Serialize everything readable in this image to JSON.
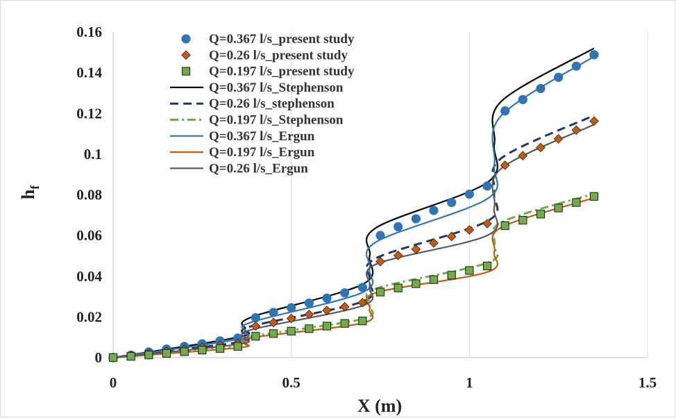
{
  "chart_data": {
    "type": "line",
    "title": "",
    "xlabel": "X (m)",
    "ylabel": "h",
    "ylabel_subscript": "f",
    "xlim": [
      0,
      1.5
    ],
    "ylim": [
      0,
      0.16
    ],
    "x_ticks": [
      "0",
      "0.5",
      "1",
      "1.5"
    ],
    "x_tick_values": [
      0,
      0.5,
      1,
      1.5
    ],
    "y_ticks": [
      "0",
      "0.02",
      "0.04",
      "0.06",
      "0.08",
      "0.1",
      "0.12",
      "0.14",
      "0.16"
    ],
    "y_tick_values": [
      0,
      0.02,
      0.04,
      0.06,
      0.08,
      0.1,
      0.12,
      0.14,
      0.16
    ],
    "grid": "vertical",
    "legend_position": "top-left",
    "series": [
      {
        "name": "Q=0.367 l/s_present study",
        "kind": "marker",
        "marker": "circle",
        "color": "#2e75b6",
        "x": [
          0,
          0.05,
          0.1,
          0.15,
          0.2,
          0.25,
          0.3,
          0.35,
          0.4,
          0.45,
          0.5,
          0.55,
          0.6,
          0.65,
          0.7,
          0.75,
          0.8,
          0.85,
          0.9,
          0.95,
          1.0,
          1.05,
          1.1,
          1.15,
          1.2,
          1.25,
          1.3,
          1.35
        ],
        "y": [
          0,
          0.0012,
          0.0028,
          0.0042,
          0.0055,
          0.0068,
          0.0082,
          0.0096,
          0.0196,
          0.0222,
          0.0245,
          0.0268,
          0.0292,
          0.0318,
          0.0345,
          0.06,
          0.0643,
          0.0682,
          0.0723,
          0.0762,
          0.0803,
          0.0843,
          0.1212,
          0.1268,
          0.1322,
          0.1377,
          0.1432,
          0.1488
        ]
      },
      {
        "name": "Q=0.26 l/s_present study",
        "kind": "marker",
        "marker": "diamond",
        "color": "#c55a11",
        "x": [
          0,
          0.05,
          0.1,
          0.15,
          0.2,
          0.25,
          0.3,
          0.35,
          0.4,
          0.45,
          0.5,
          0.55,
          0.6,
          0.65,
          0.7,
          0.75,
          0.8,
          0.85,
          0.9,
          0.95,
          1.0,
          1.05,
          1.1,
          1.15,
          1.2,
          1.25,
          1.3,
          1.35
        ],
        "y": [
          0,
          0.0009,
          0.002,
          0.003,
          0.004,
          0.005,
          0.006,
          0.007,
          0.0155,
          0.0172,
          0.0192,
          0.0212,
          0.0232,
          0.025,
          0.027,
          0.0472,
          0.0502,
          0.0532,
          0.0563,
          0.0595,
          0.0627,
          0.0658,
          0.0945,
          0.0992,
          0.1032,
          0.1075,
          0.1118,
          0.1162
        ]
      },
      {
        "name": "Q=0.197 l/s_present study",
        "kind": "marker",
        "marker": "square",
        "color": "#70ad47",
        "x": [
          0,
          0.05,
          0.1,
          0.15,
          0.2,
          0.25,
          0.3,
          0.35,
          0.4,
          0.45,
          0.5,
          0.55,
          0.6,
          0.65,
          0.7,
          0.75,
          0.8,
          0.85,
          0.9,
          0.95,
          1.0,
          1.05,
          1.1,
          1.15,
          1.2,
          1.25,
          1.3,
          1.35
        ],
        "y": [
          0,
          0.0006,
          0.0013,
          0.0021,
          0.0029,
          0.0037,
          0.0045,
          0.0055,
          0.0105,
          0.0118,
          0.013,
          0.0142,
          0.0155,
          0.0168,
          0.018,
          0.0322,
          0.0342,
          0.0363,
          0.0383,
          0.0405,
          0.0428,
          0.045,
          0.0648,
          0.0675,
          0.0705,
          0.0735,
          0.0762,
          0.0792
        ]
      },
      {
        "name": "Q=0.367 l/s_Stephenson",
        "kind": "line",
        "dash": "solid",
        "color": "#000000",
        "x": [
          0,
          0.35,
          0.37,
          0.39,
          0.7,
          0.72,
          0.74,
          1.05,
          1.07,
          1.09,
          1.35
        ],
        "y": [
          0,
          0.01,
          0.014,
          0.02,
          0.036,
          0.05,
          0.064,
          0.086,
          0.105,
          0.126,
          0.152
        ]
      },
      {
        "name": "Q=0.26 l/s_stephenson",
        "kind": "line",
        "dash": "dash",
        "color": "#1f3864",
        "x": [
          0,
          0.35,
          0.37,
          0.39,
          0.7,
          0.72,
          0.74,
          1.05,
          1.07,
          1.09,
          1.35
        ],
        "y": [
          0,
          0.0075,
          0.011,
          0.0155,
          0.0275,
          0.038,
          0.049,
          0.067,
          0.081,
          0.098,
          0.119
        ]
      },
      {
        "name": "Q=0.197 l/s_Stephenson",
        "kind": "line",
        "dash": "dashdot",
        "color": "#70ad47",
        "x": [
          0,
          0.35,
          0.37,
          0.39,
          0.7,
          0.72,
          0.74,
          1.05,
          1.07,
          1.09,
          1.35
        ],
        "y": [
          0,
          0.0055,
          0.0075,
          0.0105,
          0.019,
          0.026,
          0.034,
          0.0465,
          0.0555,
          0.0665,
          0.0805
        ]
      },
      {
        "name": "Q=0.367 l/s_Ergun",
        "kind": "line",
        "dash": "solid",
        "color": "#2e75b6",
        "x": [
          0,
          0.35,
          0.37,
          0.39,
          0.7,
          0.72,
          0.74,
          1.05,
          1.07,
          1.09,
          1.35
        ],
        "y": [
          0,
          0.009,
          0.013,
          0.0175,
          0.032,
          0.044,
          0.057,
          0.078,
          0.095,
          0.119,
          0.148
        ]
      },
      {
        "name": "Q=0.197 l/s_Ergun",
        "kind": "line",
        "dash": "solid",
        "color": "#c55a11",
        "x": [
          0,
          0.35,
          0.37,
          0.39,
          0.7,
          0.72,
          0.74,
          1.05,
          1.07,
          1.09,
          1.35
        ],
        "y": [
          0,
          0.0048,
          0.007,
          0.0098,
          0.017,
          0.024,
          0.032,
          0.042,
          0.052,
          0.064,
          0.0785
        ]
      },
      {
        "name": "Q=0.26 l/s_Ergun",
        "kind": "line",
        "dash": "solid",
        "color": "#595959",
        "x": [
          0,
          0.35,
          0.37,
          0.39,
          0.7,
          0.72,
          0.74,
          1.05,
          1.07,
          1.09,
          1.35
        ],
        "y": [
          0,
          0.0065,
          0.0095,
          0.0138,
          0.0255,
          0.035,
          0.046,
          0.06,
          0.074,
          0.093,
          0.1145
        ]
      }
    ]
  }
}
